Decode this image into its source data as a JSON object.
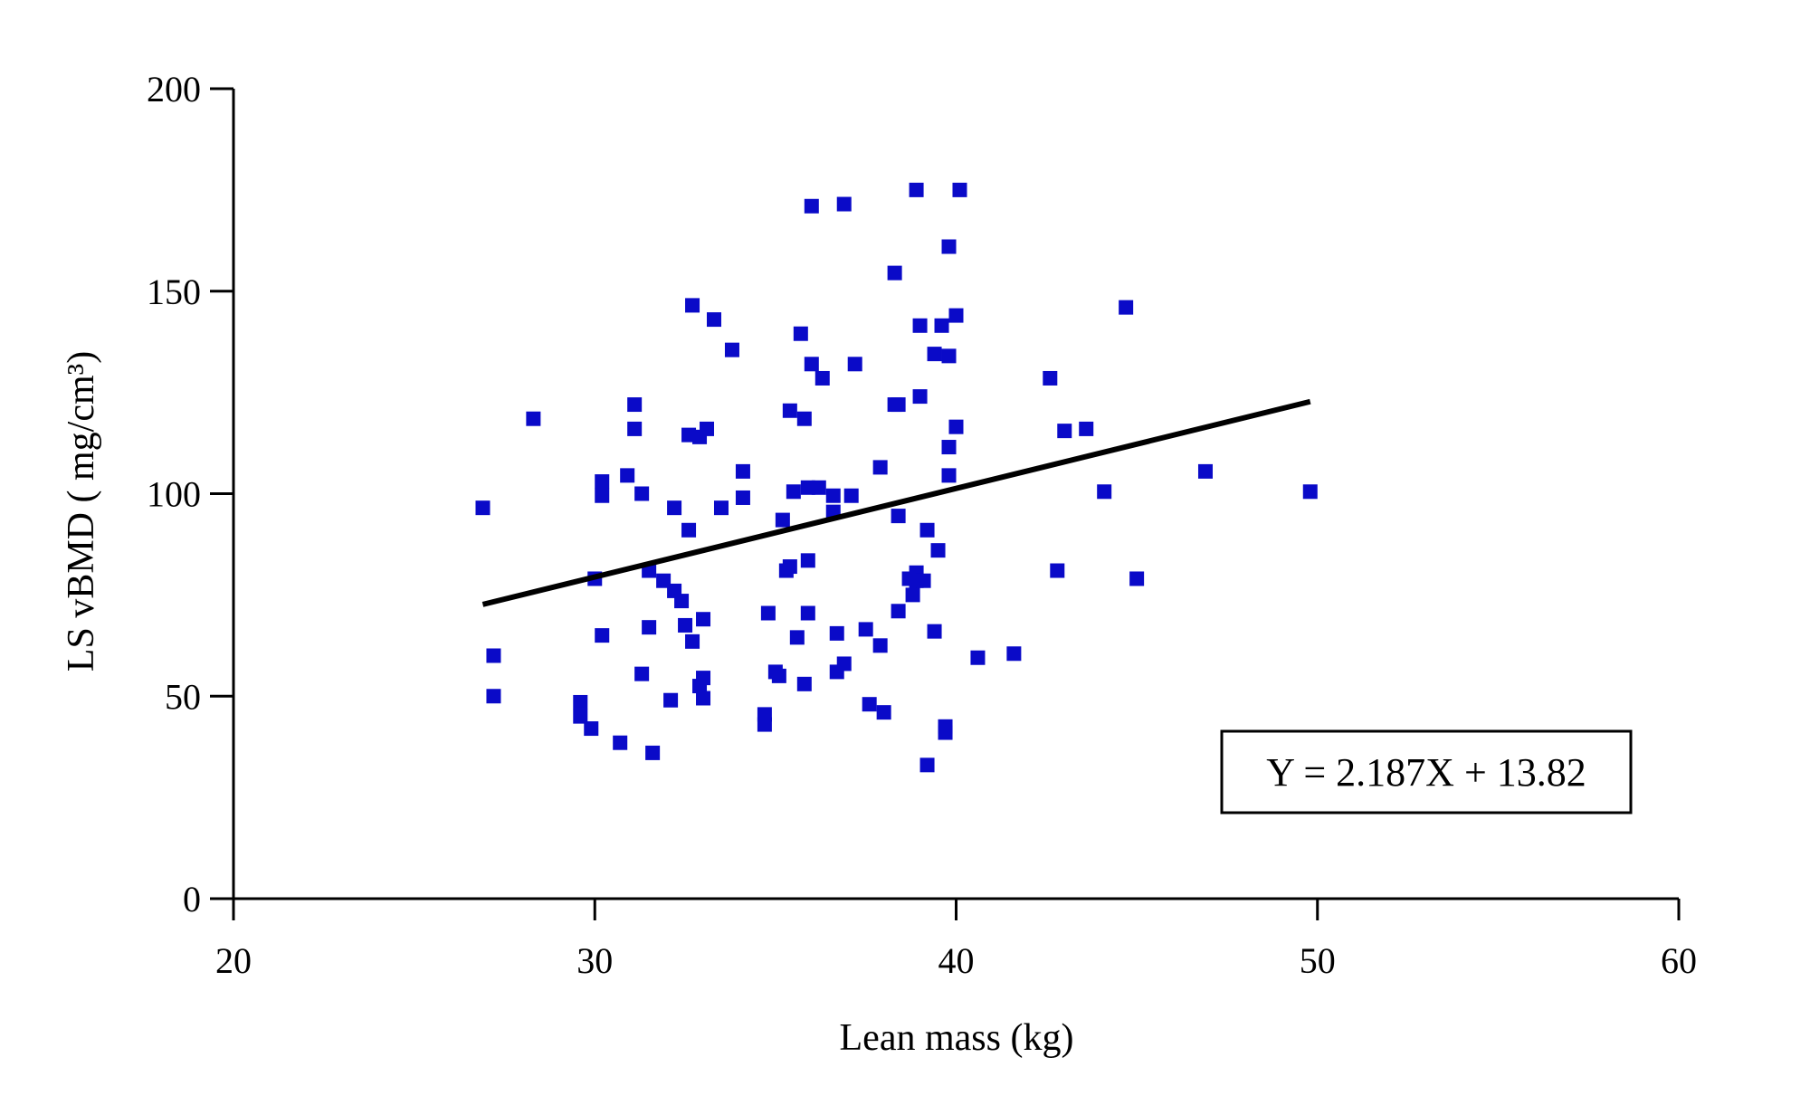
{
  "chart_data": {
    "type": "scatter",
    "title": "",
    "xlabel": "Lean mass (kg)",
    "ylabel": "LS vBMD ( mg/cm³)",
    "xlim": [
      20,
      60
    ],
    "ylim": [
      0,
      200
    ],
    "x_ticks": [
      20,
      30,
      40,
      50,
      60
    ],
    "y_ticks": [
      0,
      50,
      100,
      150,
      200
    ],
    "marker_color": "#0a0ac8",
    "marker": "square",
    "grid": false,
    "regression": {
      "equation": "Y = 2.187X + 13.82",
      "slope": 2.187,
      "intercept": 13.82,
      "x_range": [
        26.9,
        49.8
      ]
    },
    "points": [
      [
        26.9,
        96.5
      ],
      [
        27.2,
        60.0
      ],
      [
        27.2,
        50.0
      ],
      [
        28.3,
        118.5
      ],
      [
        29.6,
        45.0
      ],
      [
        29.6,
        48.5
      ],
      [
        29.9,
        42.0
      ],
      [
        30.0,
        79.0
      ],
      [
        30.2,
        65.0
      ],
      [
        30.2,
        103.0
      ],
      [
        30.2,
        99.5
      ],
      [
        30.7,
        38.5
      ],
      [
        30.9,
        104.5
      ],
      [
        31.1,
        122.0
      ],
      [
        31.1,
        116.0
      ],
      [
        31.3,
        55.5
      ],
      [
        31.3,
        100.0
      ],
      [
        31.5,
        67.0
      ],
      [
        31.5,
        81.0
      ],
      [
        31.6,
        36.0
      ],
      [
        31.9,
        78.5
      ],
      [
        32.1,
        49.0
      ],
      [
        32.2,
        76.0
      ],
      [
        32.2,
        96.5
      ],
      [
        32.4,
        73.5
      ],
      [
        32.5,
        67.5
      ],
      [
        32.6,
        91.0
      ],
      [
        32.6,
        114.5
      ],
      [
        32.7,
        63.5
      ],
      [
        32.7,
        146.5
      ],
      [
        32.9,
        52.5
      ],
      [
        32.9,
        114.0
      ],
      [
        33.0,
        49.5
      ],
      [
        33.0,
        54.5
      ],
      [
        33.0,
        69.0
      ],
      [
        33.1,
        116.0
      ],
      [
        33.3,
        143.0
      ],
      [
        33.5,
        96.5
      ],
      [
        33.8,
        135.5
      ],
      [
        34.1,
        105.5
      ],
      [
        34.1,
        99.0
      ],
      [
        34.7,
        43.0
      ],
      [
        34.7,
        45.5
      ],
      [
        34.8,
        70.5
      ],
      [
        35.0,
        56.0
      ],
      [
        35.1,
        55.0
      ],
      [
        35.2,
        93.5
      ],
      [
        35.3,
        81.0
      ],
      [
        35.4,
        82.0
      ],
      [
        35.4,
        120.5
      ],
      [
        35.5,
        100.5
      ],
      [
        35.6,
        64.5
      ],
      [
        35.7,
        139.5
      ],
      [
        35.8,
        53.0
      ],
      [
        35.8,
        118.5
      ],
      [
        35.9,
        101.5
      ],
      [
        35.9,
        83.5
      ],
      [
        35.9,
        70.5
      ],
      [
        36.0,
        132.0
      ],
      [
        36.0,
        171.0
      ],
      [
        36.2,
        101.5
      ],
      [
        36.3,
        128.5
      ],
      [
        36.6,
        95.5
      ],
      [
        36.6,
        99.5
      ],
      [
        36.7,
        65.5
      ],
      [
        36.7,
        56.0
      ],
      [
        36.9,
        171.5
      ],
      [
        36.9,
        58.0
      ],
      [
        37.1,
        99.5
      ],
      [
        37.2,
        132.0
      ],
      [
        37.5,
        66.5
      ],
      [
        37.6,
        48.0
      ],
      [
        37.9,
        62.5
      ],
      [
        37.9,
        106.5
      ],
      [
        38.0,
        46.0
      ],
      [
        38.3,
        154.5
      ],
      [
        38.3,
        122.0
      ],
      [
        38.4,
        122.0
      ],
      [
        38.4,
        94.5
      ],
      [
        38.4,
        71.0
      ],
      [
        38.7,
        79.0
      ],
      [
        38.8,
        75.0
      ],
      [
        38.9,
        80.5
      ],
      [
        38.9,
        78.5
      ],
      [
        38.9,
        175.0
      ],
      [
        39.0,
        124.0
      ],
      [
        39.0,
        141.5
      ],
      [
        39.1,
        78.5
      ],
      [
        39.2,
        91.0
      ],
      [
        39.2,
        33.0
      ],
      [
        39.4,
        134.5
      ],
      [
        39.4,
        66.0
      ],
      [
        39.5,
        86.0
      ],
      [
        39.6,
        141.5
      ],
      [
        39.7,
        42.5
      ],
      [
        39.7,
        41.0
      ],
      [
        39.8,
        111.5
      ],
      [
        39.8,
        104.5
      ],
      [
        39.8,
        161.0
      ],
      [
        39.8,
        134.0
      ],
      [
        40.0,
        144.0
      ],
      [
        40.0,
        116.5
      ],
      [
        40.1,
        175.0
      ],
      [
        40.6,
        59.5
      ],
      [
        41.6,
        60.5
      ],
      [
        42.6,
        128.5
      ],
      [
        42.8,
        81.0
      ],
      [
        43.0,
        115.5
      ],
      [
        43.6,
        116.0
      ],
      [
        44.1,
        100.5
      ],
      [
        44.7,
        146.0
      ],
      [
        45.0,
        79.0
      ],
      [
        46.9,
        105.5
      ],
      [
        49.8,
        100.5
      ]
    ]
  }
}
